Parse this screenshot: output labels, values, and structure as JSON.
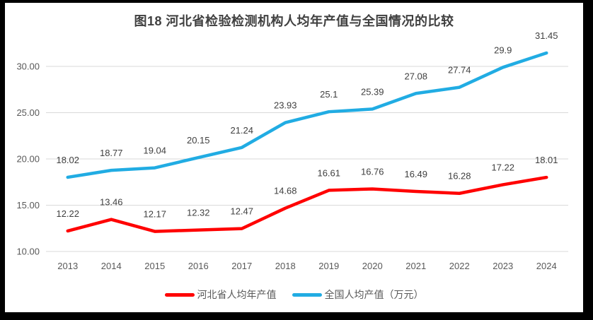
{
  "chart_data": {
    "type": "line",
    "title": "图18 河北省检验检测机构人均年产值与全国情况的比较",
    "categories": [
      "2013",
      "2014",
      "2015",
      "2016",
      "2017",
      "2018",
      "2019",
      "2020",
      "2021",
      "2022",
      "2023",
      "2024"
    ],
    "series": [
      {
        "key": "hebei",
        "name": "河北省人均年产值",
        "color": "#FF0000",
        "values": [
          12.22,
          13.46,
          12.17,
          12.32,
          12.47,
          14.68,
          16.61,
          16.76,
          16.49,
          16.28,
          17.22,
          18.01
        ]
      },
      {
        "key": "national",
        "name": "全国人均产值（万元）",
        "color": "#21ACE3",
        "values": [
          18.02,
          18.77,
          19.04,
          20.15,
          21.24,
          23.93,
          25.1,
          25.39,
          27.08,
          27.74,
          29.9,
          31.45
        ]
      }
    ],
    "y_axis": {
      "tick_values": [
        10,
        15,
        20,
        25,
        30
      ],
      "tick_labels": [
        "10.00",
        "15.00",
        "20.00",
        "25.00",
        "30.00"
      ],
      "min": 10,
      "max": 33
    },
    "xlabel": "",
    "ylabel": "",
    "grid": "horizontal",
    "legend_position": "bottom",
    "data_labels": true,
    "styles": {
      "gridline_color": "#D9D9D9",
      "axis_text_color": "#595959",
      "data_label_color": "#404040",
      "title_color": "#404040",
      "frame_color": "#000000"
    }
  }
}
